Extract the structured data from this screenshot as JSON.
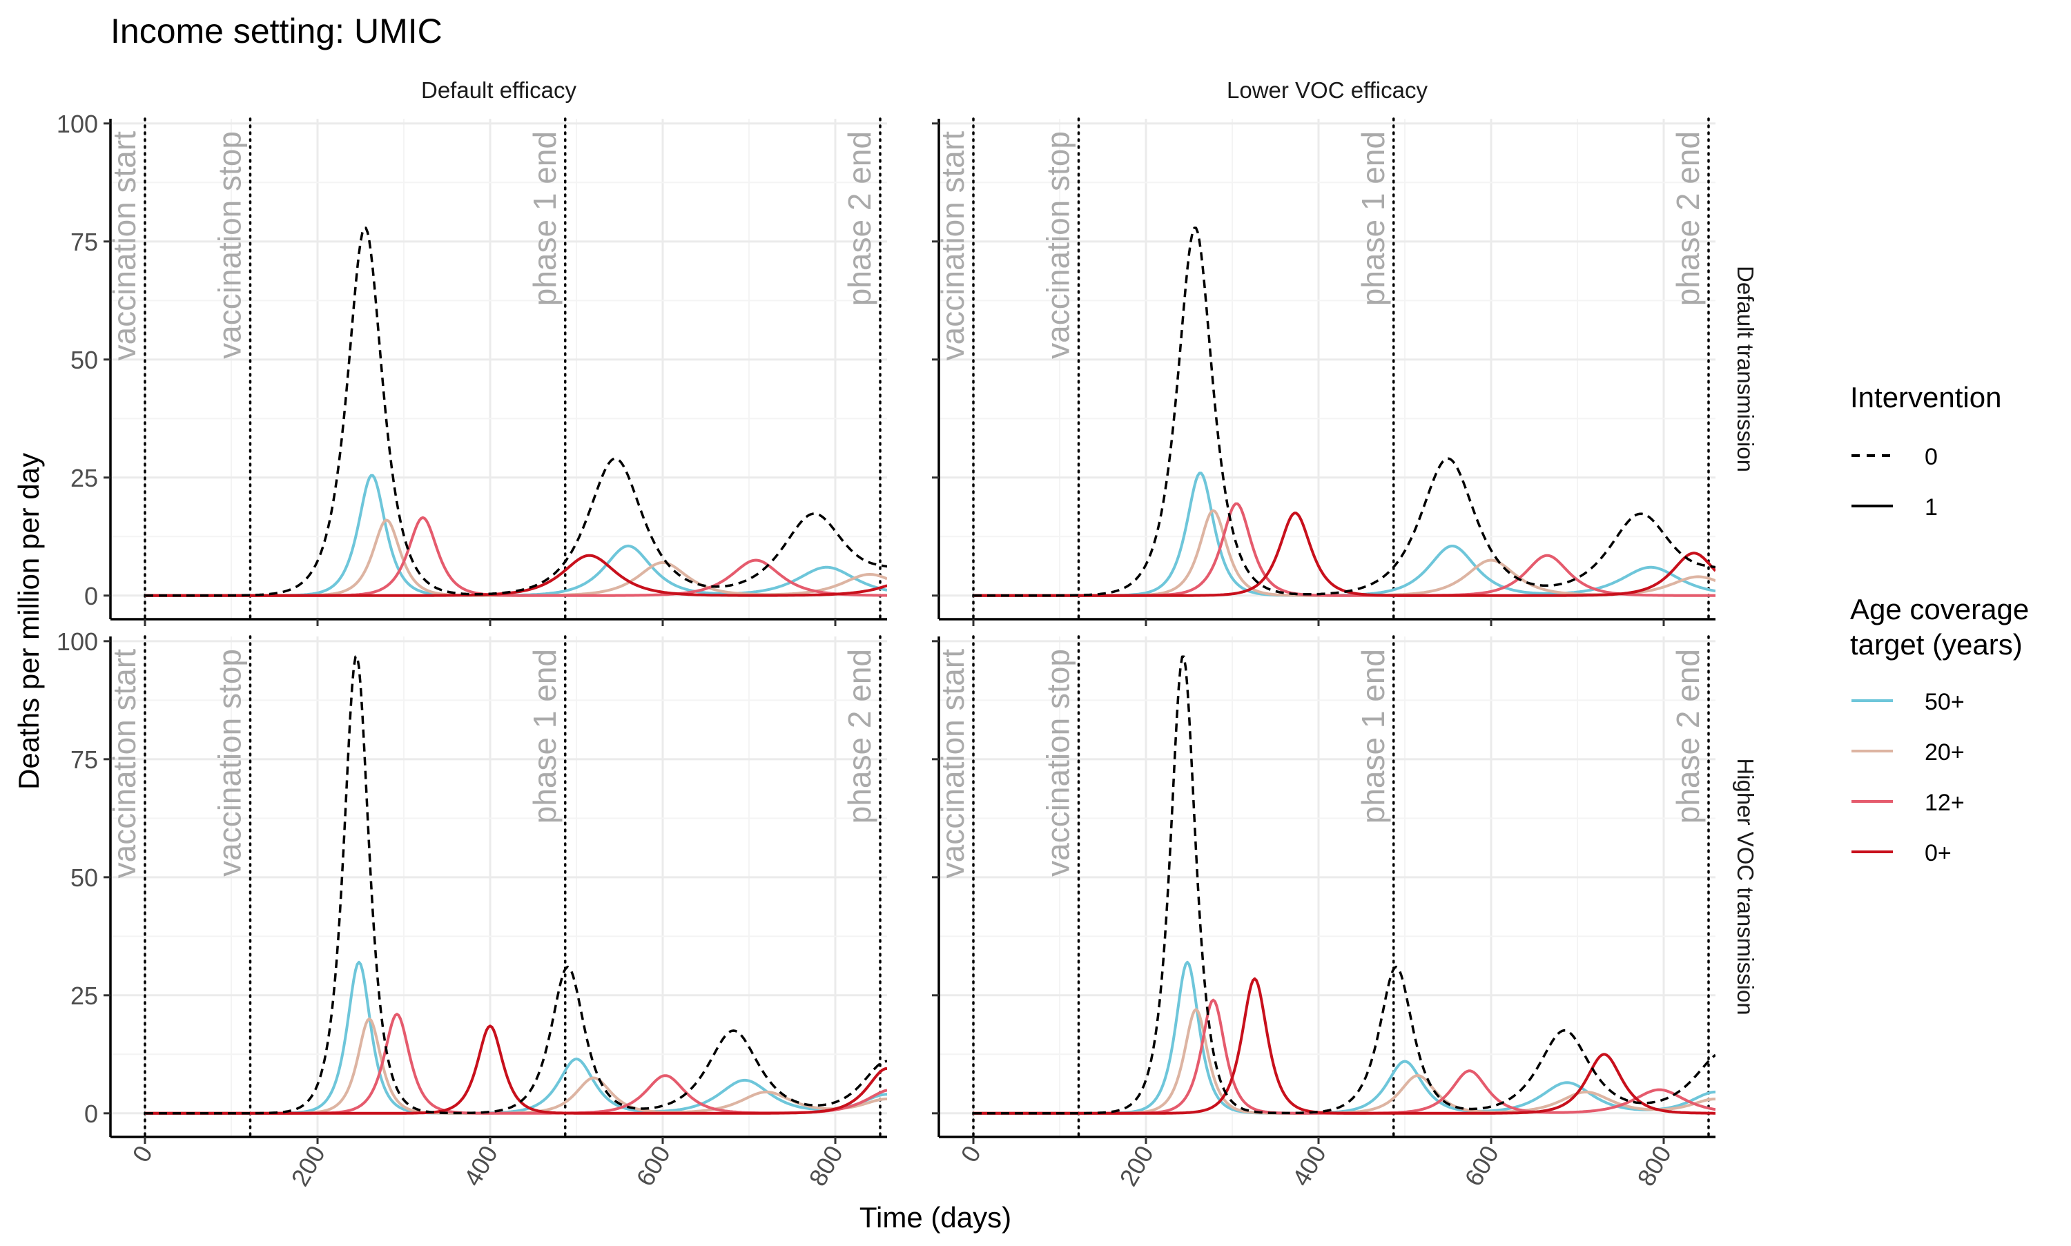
{
  "title": "Income setting: UMIC",
  "chart_data": {
    "type": "line",
    "title": "Income setting: UMIC",
    "xlabel": "Time (days)",
    "ylabel": "Deaths per million per day",
    "xlim": [
      -40,
      860
    ],
    "ylim": [
      -5,
      101
    ],
    "x_ticks": [
      0,
      200,
      400,
      600,
      800
    ],
    "y_ticks": [
      0,
      25,
      50,
      75,
      100
    ],
    "grid": true,
    "facet_columns": [
      "Default efficacy",
      "Lower VOC efficacy"
    ],
    "facet_rows": [
      "Default transmission",
      "Higher VOC transmission"
    ],
    "vlines": [
      {
        "x": 0,
        "label": "vaccination start"
      },
      {
        "x": 122,
        "label": "vaccination stop"
      },
      {
        "x": 487,
        "label": "phase 1 end"
      },
      {
        "x": 852,
        "label": "phase 2 end"
      }
    ],
    "legend": {
      "position": "right",
      "intervention_title": "Intervention",
      "intervention_items": [
        {
          "label": "0",
          "dash": true
        },
        {
          "label": "1",
          "dash": false
        }
      ],
      "age_title_line1": "Age coverage",
      "age_title_line2": "target (years)",
      "age_items": [
        {
          "label": "50+",
          "color": "#6EC6DA"
        },
        {
          "label": "20+",
          "color": "#DDB4A2"
        },
        {
          "label": "12+",
          "color": "#E55B6D"
        },
        {
          "label": "0+",
          "color": "#C8101C"
        }
      ]
    },
    "panels": [
      {
        "facet_col": "Default efficacy",
        "facet_row": "Default transmission",
        "series": [
          {
            "intervention": "0",
            "age": "",
            "peaks": [
              [
                255,
                78,
                18
              ],
              [
                545,
                29,
                28
              ],
              [
                775,
                17,
                32
              ],
              [
                870,
                4,
                30
              ]
            ]
          },
          {
            "intervention": "1",
            "age": "50+",
            "peaks": [
              [
                263,
                25.5,
                14
              ],
              [
                560,
                10.5,
                24
              ],
              [
                790,
                6,
                30
              ]
            ]
          },
          {
            "intervention": "1",
            "age": "20+",
            "peaks": [
              [
                280,
                16,
                14
              ],
              [
                600,
                7,
                25
              ],
              [
                840,
                4.5,
                28
              ]
            ]
          },
          {
            "intervention": "1",
            "age": "12+",
            "peaks": [
              [
                322,
                16.5,
                15
              ],
              [
                708,
                7.5,
                25
              ]
            ]
          },
          {
            "intervention": "1",
            "age": "0+",
            "peaks": [
              [
                515,
                8.5,
                27
              ],
              [
                905,
                5,
                30
              ]
            ]
          }
        ]
      },
      {
        "facet_col": "Lower VOC efficacy",
        "facet_row": "Default transmission",
        "series": [
          {
            "intervention": "0",
            "age": "",
            "peaks": [
              [
                257,
                78,
                18
              ],
              [
                550,
                29,
                28
              ],
              [
                773,
                17,
                32
              ],
              [
                870,
                4,
                30
              ]
            ]
          },
          {
            "intervention": "1",
            "age": "50+",
            "peaks": [
              [
                263,
                26,
                14
              ],
              [
                555,
                10.5,
                24
              ],
              [
                785,
                6,
                30
              ]
            ]
          },
          {
            "intervention": "1",
            "age": "20+",
            "peaks": [
              [
                278,
                18,
                14
              ],
              [
                600,
                7.5,
                25
              ],
              [
                840,
                4,
                28
              ]
            ]
          },
          {
            "intervention": "1",
            "age": "12+",
            "peaks": [
              [
                305,
                19.5,
                15
              ],
              [
                665,
                8.5,
                22
              ]
            ]
          },
          {
            "intervention": "1",
            "age": "0+",
            "peaks": [
              [
                373,
                17.5,
                16
              ],
              [
                835,
                9,
                22
              ]
            ]
          }
        ]
      },
      {
        "facet_col": "Default efficacy",
        "facet_row": "Higher VOC transmission",
        "series": [
          {
            "intervention": "0",
            "age": "",
            "peaks": [
              [
                245,
                97,
                13
              ],
              [
                490,
                31,
                17
              ],
              [
                682,
                17.5,
                26
              ],
              [
                860,
                11,
                25
              ]
            ]
          },
          {
            "intervention": "1",
            "age": "50+",
            "peaks": [
              [
                248,
                32,
                12
              ],
              [
                500,
                11.5,
                18
              ],
              [
                695,
                7,
                26
              ],
              [
                860,
                4,
                25
              ]
            ]
          },
          {
            "intervention": "1",
            "age": "20+",
            "peaks": [
              [
                260,
                20,
                12
              ],
              [
                520,
                7.5,
                18
              ],
              [
                720,
                4.5,
                26
              ],
              [
                860,
                3,
                25
              ]
            ]
          },
          {
            "intervention": "1",
            "age": "12+",
            "peaks": [
              [
                292,
                21,
                13
              ],
              [
                603,
                8,
                20
              ],
              [
                865,
                5,
                25
              ]
            ]
          },
          {
            "intervention": "1",
            "age": "0+",
            "peaks": [
              [
                400,
                18.5,
                13
              ],
              [
                860,
                9.5,
                20
              ]
            ]
          }
        ]
      },
      {
        "facet_col": "Lower VOC efficacy",
        "facet_row": "Higher VOC transmission",
        "series": [
          {
            "intervention": "0",
            "age": "",
            "peaks": [
              [
                243,
                97,
                13
              ],
              [
                490,
                31,
                17
              ],
              [
                685,
                17.5,
                26
              ],
              [
                870,
                13,
                30
              ]
            ]
          },
          {
            "intervention": "1",
            "age": "50+",
            "peaks": [
              [
                248,
                32,
                12
              ],
              [
                500,
                11,
                18
              ],
              [
                688,
                6.5,
                26
              ],
              [
                860,
                4.5,
                25
              ]
            ]
          },
          {
            "intervention": "1",
            "age": "20+",
            "peaks": [
              [
                258,
                22,
                12
              ],
              [
                515,
                8,
                18
              ],
              [
                710,
                4.5,
                26
              ],
              [
                860,
                3,
                25
              ]
            ]
          },
          {
            "intervention": "1",
            "age": "12+",
            "peaks": [
              [
                278,
                24,
                12
              ],
              [
                575,
                9,
                18
              ],
              [
                795,
                5,
                26
              ]
            ]
          },
          {
            "intervention": "1",
            "age": "0+",
            "peaks": [
              [
                326,
                28.5,
                13
              ],
              [
                731,
                12.5,
                18
              ]
            ]
          }
        ]
      }
    ]
  }
}
